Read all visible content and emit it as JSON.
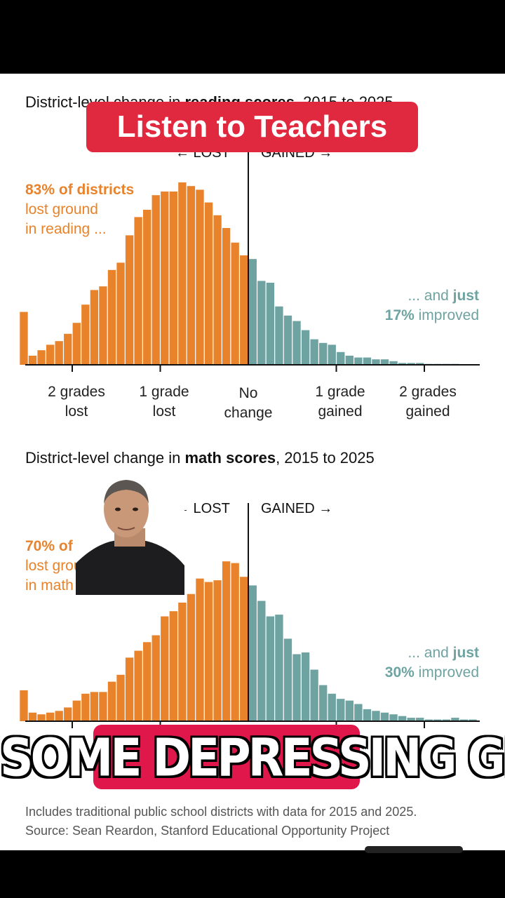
{
  "banner": {
    "text": "Listen to Teachers"
  },
  "caption": {
    "text": "SOME DEPRESSING GRAPHS"
  },
  "footnote": {
    "line1": "Includes traditional public school districts with data for 2015 and 2025.",
    "line2": "Source: Sean Reardon, Stanford Educational Opportunity Project"
  },
  "colors": {
    "lost": "#e8832b",
    "gained": "#6fa3a2",
    "banner": "#e0283e",
    "caption_box": "#e0174a"
  },
  "chart_data": [
    {
      "type": "bar",
      "title_pre": "District-level change in ",
      "title_bold": "reading scores",
      "title_post": ", 2015 to 2025",
      "lost_label": "← LOST",
      "gained_label": "GAINED →",
      "lost_annotation": {
        "bold": "83% of districts",
        "line2": "lost ground",
        "line3": "in reading ..."
      },
      "gained_annotation": {
        "pre": "... and ",
        "bold_word": "just",
        "bold_pct": "17%",
        "post": " improved"
      },
      "x_unit": "grades",
      "bin_width": 0.1,
      "x_range": [
        -2.5,
        2.6
      ],
      "x_ticks": [
        -2,
        -1,
        0,
        1,
        2
      ],
      "tick_labels": [
        {
          "line1": "2 grades",
          "line2": "lost"
        },
        {
          "line1": "1 grade",
          "line2": "lost"
        },
        {
          "line1": "No",
          "line2": "change"
        },
        {
          "line1": "1 grade",
          "line2": "gained"
        },
        {
          "line1": "2 grades",
          "line2": "gained"
        }
      ],
      "ylim": [
        0,
        100
      ],
      "lost_values": [
        29,
        5,
        8,
        11,
        13,
        17,
        23,
        33,
        41,
        43,
        52,
        56,
        71,
        81,
        85,
        93,
        95,
        95,
        100,
        98,
        96,
        89,
        82,
        75,
        67,
        60
      ],
      "gained_values": [
        58,
        46,
        45,
        32,
        27,
        24,
        19,
        14,
        12,
        11,
        7,
        5,
        4,
        4,
        3,
        3,
        2,
        1,
        1,
        1,
        0.5,
        0.5,
        0.5,
        0.5,
        0.3,
        0.3
      ]
    },
    {
      "type": "bar",
      "title_pre": "District-level change in ",
      "title_bold": "math scores",
      "title_post": ", 2015 to 2025",
      "lost_label": "← LOST",
      "gained_label": "GAINED →",
      "lost_annotation": {
        "bold": "70% of districts",
        "line2": "lost ground",
        "line3": "in math ..."
      },
      "gained_annotation": {
        "pre": "... and ",
        "bold_word": "just",
        "bold_pct": "30%",
        "post": " improved"
      },
      "x_unit": "grades",
      "bin_width": 0.1,
      "x_range": [
        -2.5,
        2.6
      ],
      "x_ticks": [
        -2,
        -1,
        0,
        1,
        2
      ],
      "ylim": [
        0,
        100
      ],
      "lost_values": [
        18,
        5,
        4,
        5,
        6,
        8,
        12,
        16,
        17,
        17,
        23,
        27,
        37,
        41,
        46,
        50,
        61,
        64,
        69,
        74,
        83,
        81,
        82,
        93,
        92,
        84
      ],
      "gained_values": [
        79,
        70,
        61,
        62,
        48,
        39,
        40,
        30,
        21,
        16,
        13,
        12,
        10,
        7,
        6,
        5,
        4,
        3,
        2,
        2,
        1,
        1,
        1,
        2,
        1,
        1
      ]
    }
  ]
}
